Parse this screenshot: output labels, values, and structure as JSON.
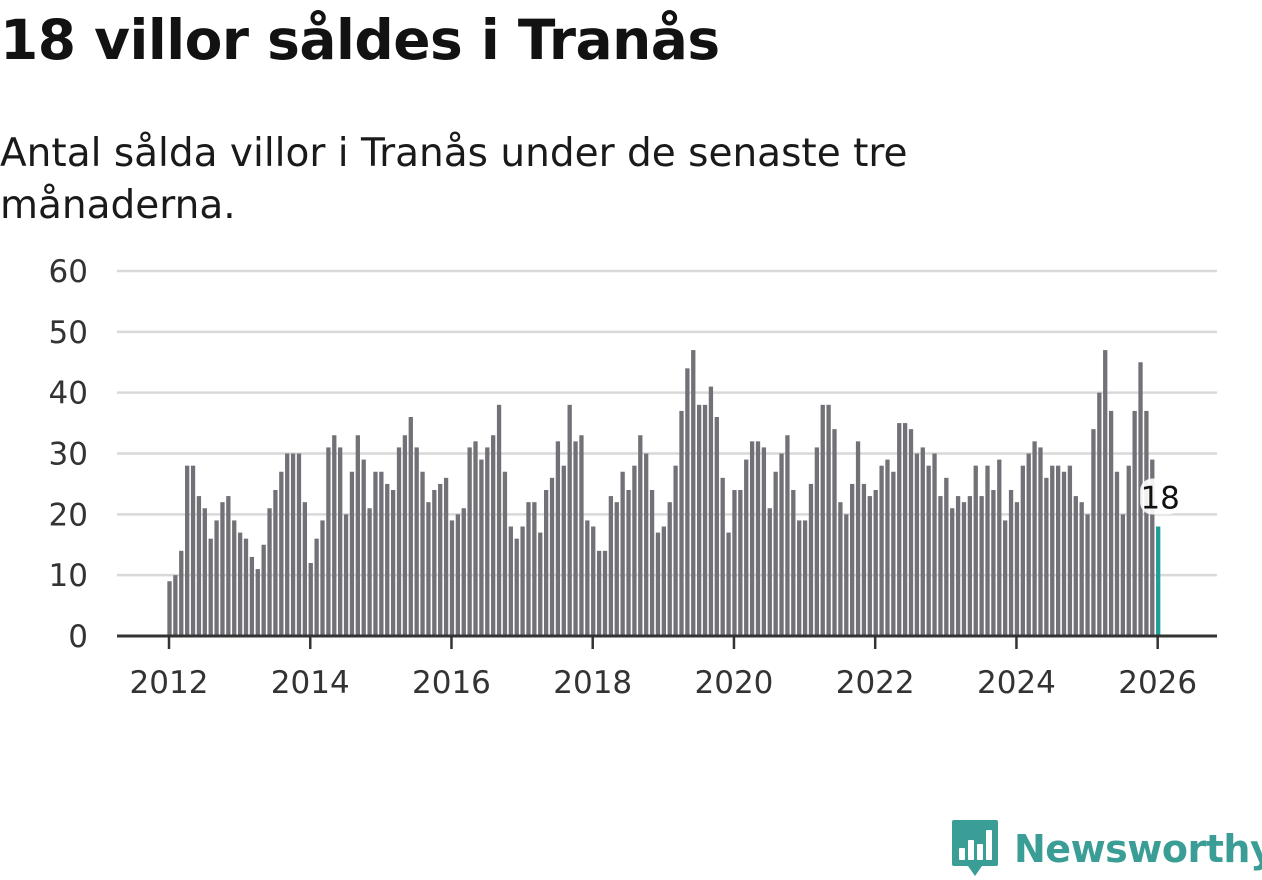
{
  "title": "18 villor såldes i Tranås",
  "subtitle": "Antal sålda villor i Tranås under de senaste tre månaderna.",
  "brand": {
    "name": "Newsworthy",
    "color": "#3a9d96",
    "icon": "newsworthy-logo-icon"
  },
  "colors": {
    "bar": "#727177",
    "highlight": "#1f9e96",
    "grid": "#d9d9d9",
    "axis": "#333333"
  },
  "chart_data": {
    "type": "bar",
    "title": "18 villor såldes i Tranås",
    "xlabel": "",
    "ylabel": "",
    "ylim": [
      0,
      60
    ],
    "yticks": [
      0,
      10,
      20,
      30,
      40,
      50,
      60
    ],
    "xticks": [
      "2012",
      "2014",
      "2016",
      "2018",
      "2020",
      "2022",
      "2024",
      "2026"
    ],
    "start": "2012-01",
    "grid": true,
    "highlight_last": true,
    "annotation": "18",
    "values": [
      9,
      10,
      14,
      28,
      28,
      23,
      21,
      16,
      19,
      22,
      23,
      19,
      17,
      16,
      13,
      11,
      15,
      21,
      24,
      27,
      30,
      30,
      30,
      22,
      12,
      16,
      19,
      31,
      33,
      31,
      20,
      27,
      33,
      29,
      21,
      27,
      27,
      25,
      24,
      31,
      33,
      36,
      31,
      27,
      22,
      24,
      25,
      26,
      19,
      20,
      21,
      31,
      32,
      29,
      31,
      33,
      38,
      27,
      18,
      16,
      18,
      22,
      22,
      17,
      24,
      26,
      32,
      28,
      38,
      32,
      33,
      19,
      18,
      14,
      14,
      23,
      22,
      27,
      24,
      28,
      33,
      30,
      24,
      17,
      18,
      22,
      28,
      37,
      44,
      47,
      38,
      38,
      41,
      36,
      26,
      17,
      24,
      24,
      29,
      32,
      32,
      31,
      21,
      27,
      30,
      33,
      24,
      19,
      19,
      25,
      31,
      38,
      38,
      34,
      22,
      20,
      25,
      32,
      25,
      23,
      24,
      28,
      29,
      27,
      35,
      35,
      34,
      30,
      31,
      28,
      30,
      23,
      26,
      21,
      23,
      22,
      23,
      28,
      23,
      28,
      24,
      29,
      19,
      24,
      22,
      28,
      30,
      32,
      31,
      26,
      28,
      28,
      27,
      28,
      23,
      22,
      20,
      34,
      40,
      47,
      37,
      27,
      20,
      28,
      37,
      45,
      37,
      29,
      18
    ]
  }
}
